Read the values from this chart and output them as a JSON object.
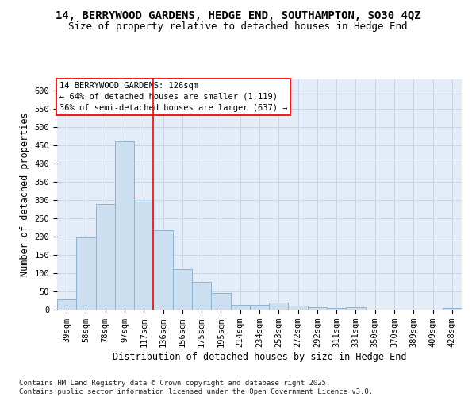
{
  "title1": "14, BERRYWOOD GARDENS, HEDGE END, SOUTHAMPTON, SO30 4QZ",
  "title2": "Size of property relative to detached houses in Hedge End",
  "xlabel": "Distribution of detached houses by size in Hedge End",
  "ylabel": "Number of detached properties",
  "categories": [
    "39sqm",
    "58sqm",
    "78sqm",
    "97sqm",
    "117sqm",
    "136sqm",
    "156sqm",
    "175sqm",
    "195sqm",
    "214sqm",
    "234sqm",
    "253sqm",
    "272sqm",
    "292sqm",
    "311sqm",
    "331sqm",
    "350sqm",
    "370sqm",
    "389sqm",
    "409sqm",
    "428sqm"
  ],
  "values": [
    28,
    197,
    290,
    460,
    295,
    217,
    111,
    75,
    46,
    13,
    13,
    20,
    10,
    6,
    5,
    7,
    0,
    0,
    0,
    0,
    5
  ],
  "bar_color": "#ccdff0",
  "bar_edge_color": "#8ab4d4",
  "grid_color": "#c8d4e8",
  "background_color": "#e4ecf7",
  "annotation_box_text": "14 BERRYWOOD GARDENS: 126sqm\n← 64% of detached houses are smaller (1,119)\n36% of semi-detached houses are larger (637) →",
  "annotation_box_color": "white",
  "annotation_box_edge_color": "red",
  "vline_x_index": 4.5,
  "vline_color": "red",
  "ylim": [
    0,
    630
  ],
  "yticks": [
    0,
    50,
    100,
    150,
    200,
    250,
    300,
    350,
    400,
    450,
    500,
    550,
    600
  ],
  "footnote": "Contains HM Land Registry data © Crown copyright and database right 2025.\nContains public sector information licensed under the Open Government Licence v3.0.",
  "title_fontsize": 10,
  "subtitle_fontsize": 9,
  "axis_label_fontsize": 8.5,
  "tick_fontsize": 7.5,
  "annotation_fontsize": 7.5,
  "footnote_fontsize": 6.5
}
